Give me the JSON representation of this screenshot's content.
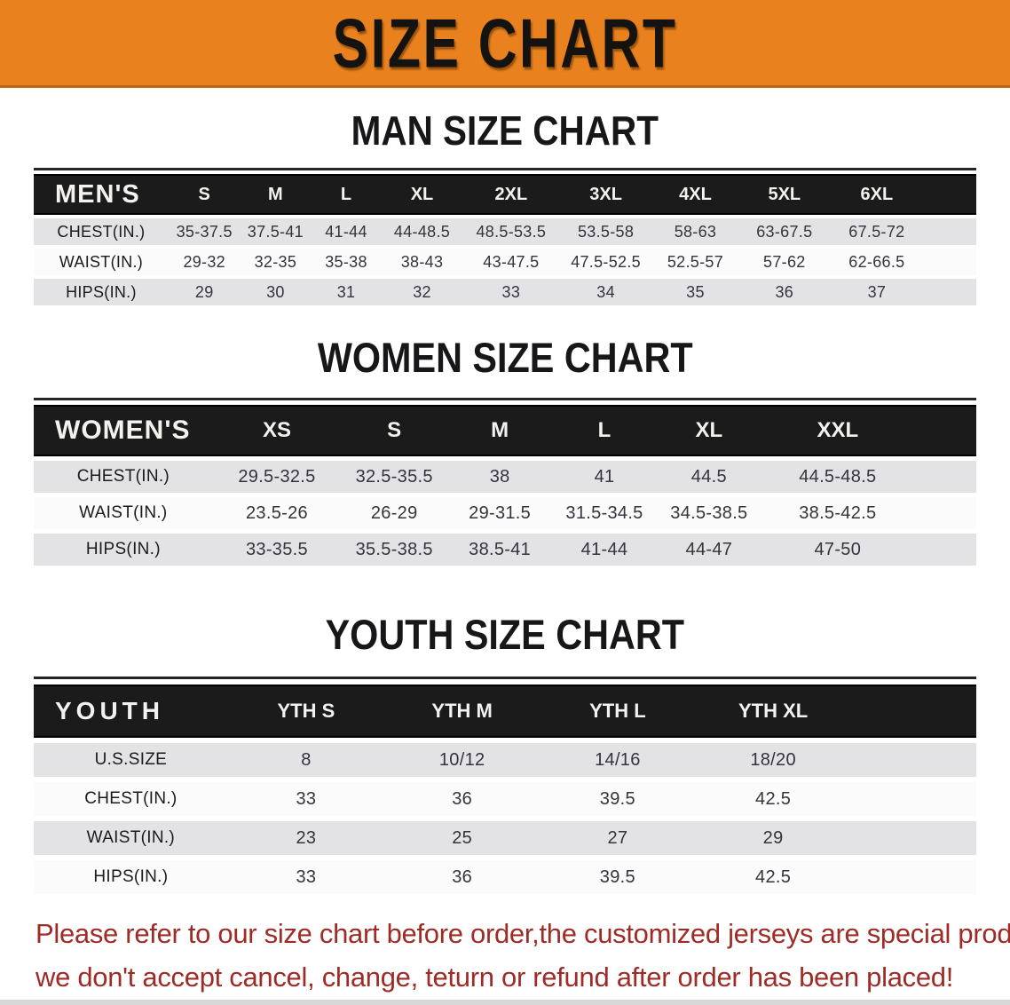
{
  "banner": {
    "title": "SIZE CHART"
  },
  "colors": {
    "banner_bg": "#E8811E",
    "table_header_bar": "#1B1B1B",
    "row_stripe": "#E3E3E6",
    "note_text": "#9E2B26"
  },
  "sections": [
    {
      "title": "MAN SIZE CHART",
      "table": {
        "header_label": "MEN'S",
        "columns": [
          "S",
          "M",
          "L",
          "XL",
          "2XL",
          "3XL",
          "4XL",
          "5XL",
          "6XL"
        ],
        "rows": [
          {
            "label": "CHEST(IN.)",
            "values": [
              "35-37.5",
              "37.5-41",
              "41-44",
              "44-48.5",
              "48.5-53.5",
              "53.5-58",
              "58-63",
              "63-67.5",
              "67.5-72"
            ]
          },
          {
            "label": "WAIST(IN.)",
            "values": [
              "29-32",
              "32-35",
              "35-38",
              "38-43",
              "43-47.5",
              "47.5-52.5",
              "52.5-57",
              "57-62",
              "62-66.5"
            ]
          },
          {
            "label": "HIPS(IN.)",
            "values": [
              "29",
              "30",
              "31",
              "32",
              "33",
              "34",
              "35",
              "36",
              "37"
            ]
          }
        ]
      }
    },
    {
      "title": "WOMEN SIZE CHART",
      "table": {
        "header_label": "WOMEN'S",
        "columns": [
          "XS",
          "S",
          "M",
          "L",
          "XL",
          "XXL"
        ],
        "rows": [
          {
            "label": "CHEST(IN.)",
            "values": [
              "29.5-32.5",
              "32.5-35.5",
              "38",
              "41",
              "44.5",
              "44.5-48.5"
            ]
          },
          {
            "label": "WAIST(IN.)",
            "values": [
              "23.5-26",
              "26-29",
              "29-31.5",
              "31.5-34.5",
              "34.5-38.5",
              "38.5-42.5"
            ]
          },
          {
            "label": "HIPS(IN.)",
            "values": [
              "33-35.5",
              "35.5-38.5",
              "38.5-41",
              "41-44",
              "44-47",
              "47-50"
            ]
          }
        ]
      }
    },
    {
      "title": "YOUTH SIZE CHART",
      "table": {
        "header_label": "YOUTH",
        "columns": [
          "YTH S",
          "YTH M",
          "YTH L",
          "YTH XL"
        ],
        "rows": [
          {
            "label": "U.S.SIZE",
            "values": [
              "8",
              "10/12",
              "14/16",
              "18/20"
            ]
          },
          {
            "label": "CHEST(IN.)",
            "values": [
              "33",
              "36",
              "39.5",
              "42.5"
            ]
          },
          {
            "label": "WAIST(IN.)",
            "values": [
              "23",
              "25",
              "27",
              "29"
            ]
          },
          {
            "label": "HIPS(IN.)",
            "values": [
              "33",
              "36",
              "39.5",
              "42.5"
            ]
          }
        ]
      }
    }
  ],
  "note": {
    "line1": "Please refer to our size chart before order,the customized jerseys are special products,",
    "line2": "we don't accept cancel, change, teturn or refund after order has been placed!"
  }
}
